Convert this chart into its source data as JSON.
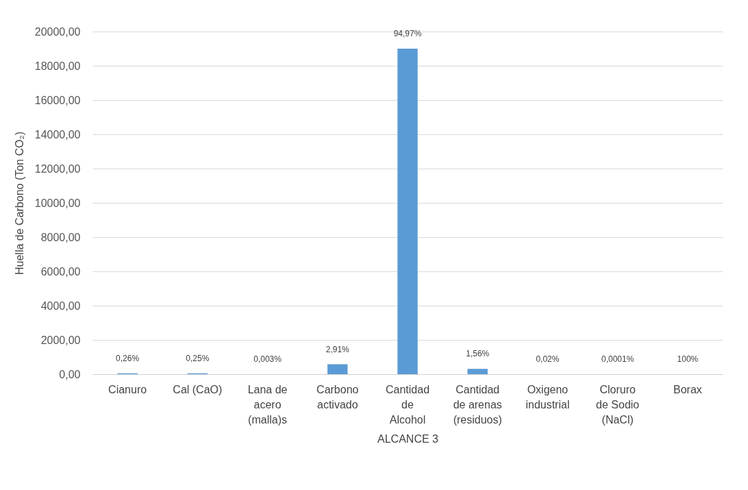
{
  "chart_data": {
    "type": "bar",
    "xlabel": "ALCANCE 3",
    "ylabel": "Huella de Carbono (Ton CO₂)",
    "categories": [
      "Cianuro",
      "Cal (CaO)",
      "Lana de acero (malla)s",
      "Carbono activado",
      "Cantidad de Alcohol",
      "Cantidad de arenas (residuos)",
      "Oxigeno industrial",
      "Cloruro de Sodio (NaCl)",
      "Borax"
    ],
    "values": [
      50,
      50,
      0,
      580,
      19000,
      310,
      0,
      0,
      0
    ],
    "annotations": [
      {
        "text": "0,26%",
        "x": "Cianuro",
        "y": 50
      },
      {
        "text": "0,25%",
        "x": "Cal (CaO)",
        "y": 50
      },
      {
        "text": "0,003%",
        "x": "Lana de acero (malla)s",
        "y": 0
      },
      {
        "text": "2,91%",
        "x": "Carbono activado",
        "y": 580
      },
      {
        "text": "94,97%",
        "x": "Cantidad de Alcohol",
        "y": 19000
      },
      {
        "text": "1,56%",
        "x": "Cantidad de arenas (residuos)",
        "y": 310
      },
      {
        "text": "0,02%",
        "x": "Oxigeno industrial",
        "y": 0
      },
      {
        "text": "0,0001%",
        "x": "Cloruro de Sodio (NaCl)",
        "y": 0
      },
      {
        "text": "100%",
        "x": "Borax",
        "y": 0
      }
    ],
    "color": "#5b9bd5",
    "ylim": [
      0,
      20000
    ],
    "yticks": [
      {
        "value": 0,
        "label": "0,00"
      },
      {
        "value": 2000,
        "label": "2000,00"
      },
      {
        "value": 4000,
        "label": "4000,00"
      },
      {
        "value": 6000,
        "label": "6000,00"
      },
      {
        "value": 8000,
        "label": "8000,00"
      },
      {
        "value": 10000,
        "label": "10000,00"
      },
      {
        "value": 12000,
        "label": "12000,00"
      },
      {
        "value": 14000,
        "label": "14000,00"
      },
      {
        "value": 16000,
        "label": "16000,00"
      },
      {
        "value": 18000,
        "label": "18000,00"
      },
      {
        "value": 20000,
        "label": "20000,00"
      }
    ],
    "grid": "y"
  }
}
